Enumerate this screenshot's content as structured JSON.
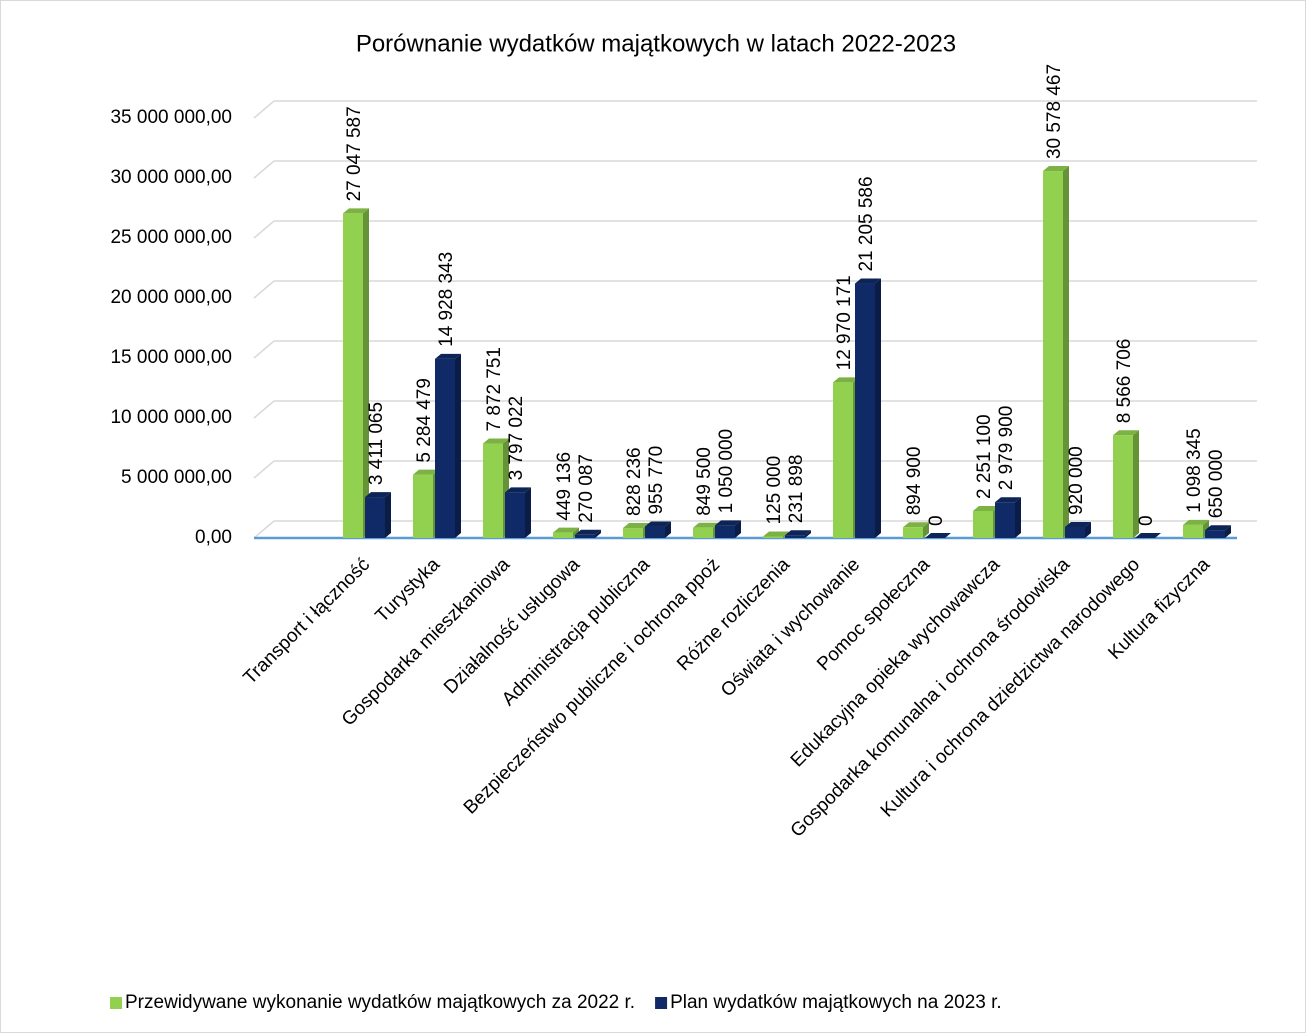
{
  "chart_data": {
    "type": "bar3d",
    "title": "Porównanie wydatków majątkowych w latach 2022-2023",
    "categories": [
      "Transport i łączność",
      "Turystyka",
      "Gospodarka mieszkaniowa",
      "Działalność usługowa",
      "Administracja publiczna",
      "Bezpieczeństwo publiczne i ochrona ppoż",
      "Różne rozliczenia",
      "Oświata i wychowanie",
      "Pomoc społeczna",
      "Edukacyjna opieka wychowawcza",
      "Gospodarka komunalna i ochrona środowiska",
      "Kultura i ochrona dziedzictwa narodowego",
      "Kultura fizyczna"
    ],
    "series": [
      {
        "name": "Przewidywane wykonanie wydatków majątkowych za 2022 r.",
        "color": "#92d050",
        "values": [
          27047587,
          5284479,
          7872751,
          449136,
          828236,
          849500,
          125000,
          12970171,
          894900,
          2251100,
          30578467,
          8566706,
          1098345
        ],
        "value_labels": [
          "27 047 587",
          "5 284 479",
          "7 872 751",
          "449 136",
          "828 236",
          "849 500",
          "125 000",
          "12 970 171",
          "894 900",
          "2 251 100",
          "30 578 467",
          "8 566 706",
          "1 098 345"
        ]
      },
      {
        "name": "Plan wydatków majątkowych na 2023 r.",
        "color": "#0f2a66",
        "values": [
          3411065,
          14928343,
          3797022,
          270087,
          955770,
          1050000,
          231898,
          21205586,
          0,
          2979900,
          920000,
          0,
          650000
        ],
        "value_labels": [
          "3 411 065",
          "14 928 343",
          "3 797 022",
          "270 087",
          "955 770",
          "1 050 000",
          "231 898",
          "21 205 586",
          "0",
          "2 979 900",
          "920 000",
          "0",
          "650 000"
        ]
      }
    ],
    "ylim": [
      0,
      35000000
    ],
    "yticks": [
      {
        "value": 0,
        "label": "0,00"
      },
      {
        "value": 5000000,
        "label": "5 000 000,00"
      },
      {
        "value": 10000000,
        "label": "10 000 000,00"
      },
      {
        "value": 15000000,
        "label": "15 000 000,00"
      },
      {
        "value": 20000000,
        "label": "20 000 000,00"
      },
      {
        "value": 25000000,
        "label": "25 000 000,00"
      },
      {
        "value": 30000000,
        "label": "30 000 000,00"
      },
      {
        "value": 35000000,
        "label": "35 000 000,00"
      }
    ],
    "grid": true,
    "legend": "bottom"
  }
}
